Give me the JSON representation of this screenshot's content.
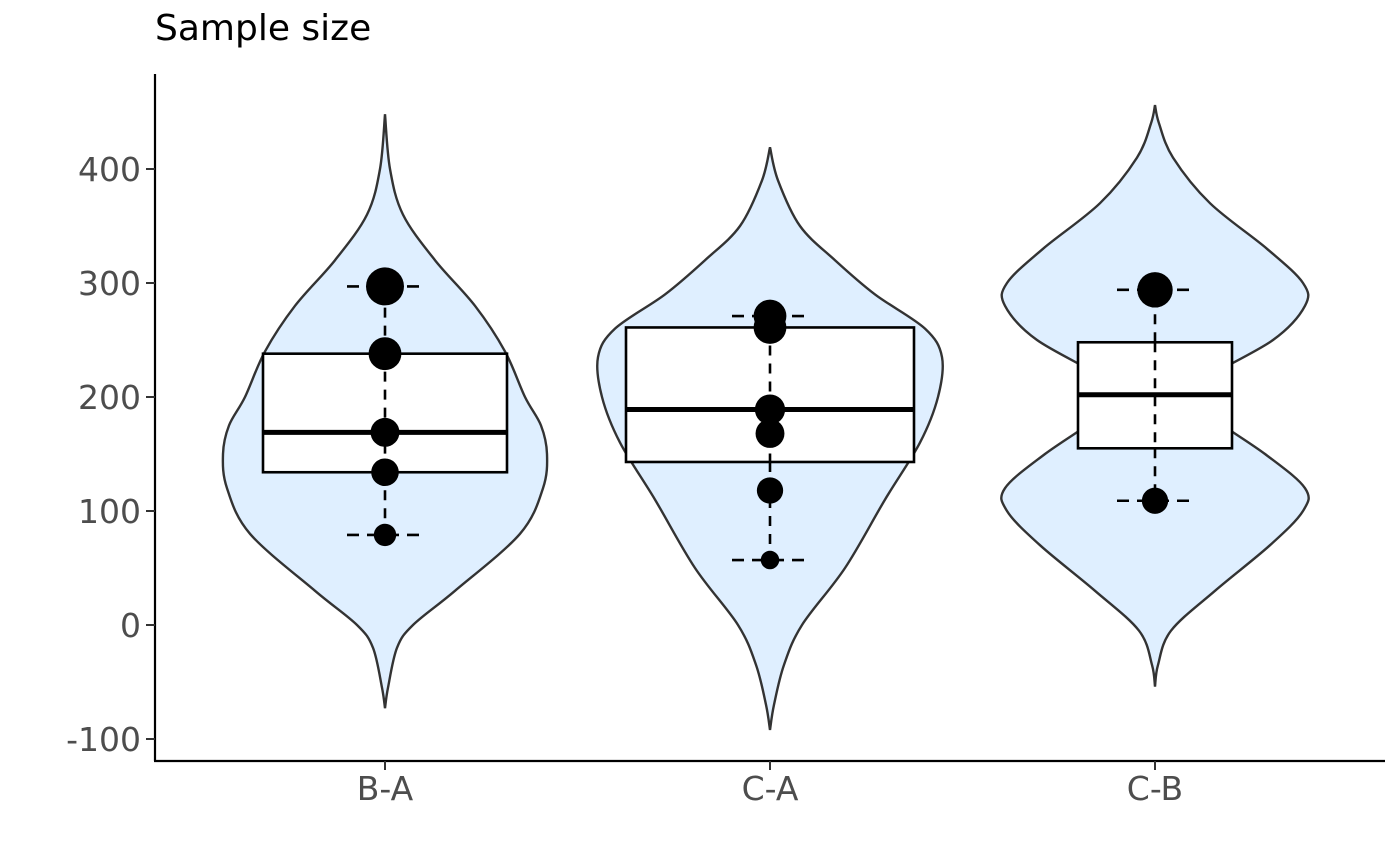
{
  "chart_data": {
    "type": "violin",
    "title": "Sample size",
    "xlabel": "",
    "ylabel": "",
    "ylim": [
      -120,
      480
    ],
    "y_ticks": [
      -100,
      0,
      100,
      200,
      300,
      400
    ],
    "categories": [
      "B-A",
      "C-A",
      "C-B"
    ],
    "grid": false,
    "colors": {
      "violin_fill": "#dfefff",
      "violin_stroke": "#333333",
      "box_fill": "#ffffff",
      "marks": "#000000"
    },
    "groups": [
      {
        "name": "B-A",
        "violin_range": [
          -73,
          448
        ],
        "box": {
          "q1": 134,
          "median": 169,
          "q3": 238,
          "whisker_low": 79,
          "whisker_high": 297
        },
        "points": [
          {
            "y": 297,
            "size": 2.0
          },
          {
            "y": 238,
            "size": 1.6
          },
          {
            "y": 169,
            "size": 1.3
          },
          {
            "y": 134,
            "size": 1.2
          },
          {
            "y": 79,
            "size": 0.8
          }
        ]
      },
      {
        "name": "C-A",
        "violin_range": [
          -92,
          419
        ],
        "box": {
          "q1": 143,
          "median": 189,
          "q3": 261,
          "whisker_low": 57,
          "whisker_high": 271
        },
        "points": [
          {
            "y": 271,
            "size": 1.6
          },
          {
            "y": 261,
            "size": 1.6
          },
          {
            "y": 189,
            "size": 1.4
          },
          {
            "y": 168,
            "size": 1.3
          },
          {
            "y": 118,
            "size": 1.1
          },
          {
            "y": 57,
            "size": 0.5
          }
        ]
      },
      {
        "name": "C-B",
        "violin_range": [
          -54,
          456
        ],
        "box": {
          "q1": 155,
          "median": 202,
          "q3": 248,
          "whisker_low": 109,
          "whisker_high": 294
        },
        "points": [
          {
            "y": 294,
            "size": 1.8
          },
          {
            "y": 109,
            "size": 1.1
          }
        ]
      }
    ]
  }
}
